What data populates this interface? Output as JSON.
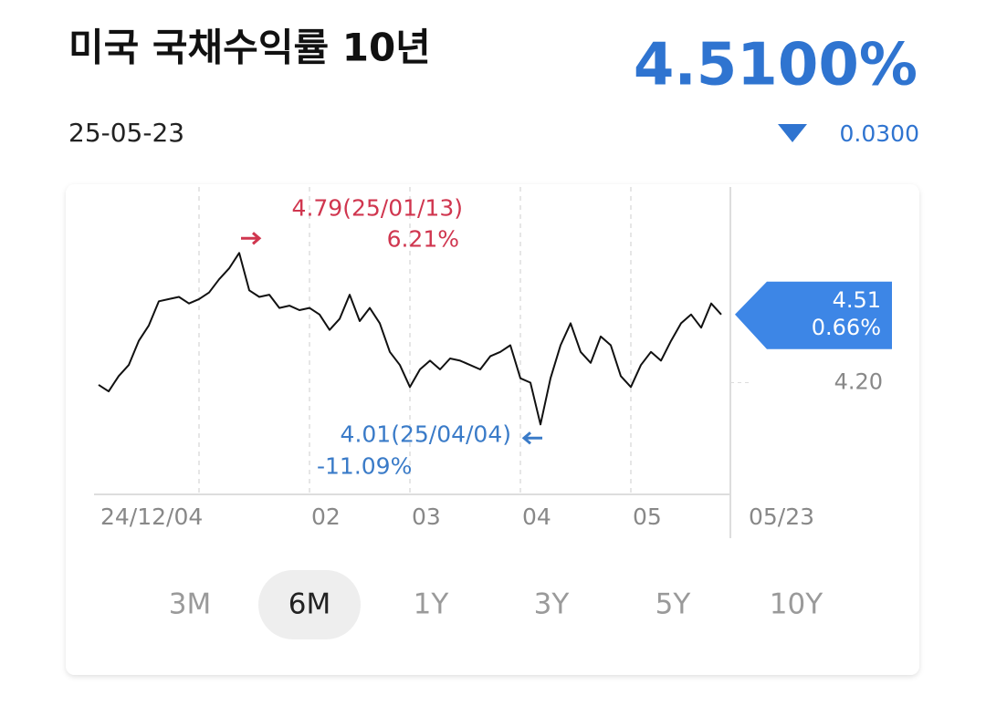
{
  "header": {
    "title": "미국 국채수익률 10년",
    "price": "4.5100%",
    "date": "25-05-23",
    "change": "0.0300",
    "color": "#2f74d0"
  },
  "chart_data": {
    "type": "line",
    "categories": [
      "24/12/04",
      null,
      null,
      null,
      null,
      null,
      null,
      null,
      null,
      null,
      null,
      null,
      null,
      null,
      null,
      null,
      null,
      null,
      null,
      null,
      null,
      "02",
      null,
      null,
      null,
      null,
      null,
      null,
      null,
      null,
      null,
      "03",
      null,
      null,
      null,
      null,
      null,
      null,
      null,
      null,
      null,
      null,
      "04",
      null,
      null,
      null,
      null,
      null,
      null,
      null,
      null,
      null,
      null,
      "05",
      null,
      null,
      null,
      null,
      null,
      null,
      null,
      null,
      "05/23"
    ],
    "values": [
      4.19,
      4.16,
      4.23,
      4.28,
      4.39,
      4.46,
      4.57,
      4.58,
      4.59,
      4.56,
      4.58,
      4.61,
      4.67,
      4.72,
      4.79,
      4.62,
      4.59,
      4.6,
      4.54,
      4.55,
      4.53,
      4.54,
      4.51,
      4.44,
      4.49,
      4.6,
      4.48,
      4.54,
      4.47,
      4.34,
      4.28,
      4.18,
      4.26,
      4.3,
      4.26,
      4.31,
      4.3,
      4.28,
      4.26,
      4.32,
      4.34,
      4.37,
      4.22,
      4.2,
      4.01,
      4.22,
      4.37,
      4.47,
      4.34,
      4.29,
      4.41,
      4.37,
      4.23,
      4.18,
      4.28,
      4.34,
      4.3,
      4.39,
      4.47,
      4.51,
      4.45,
      4.56,
      4.51
    ],
    "color": "#111111",
    "ylim": [
      3.7,
      5.09
    ],
    "yticks": [
      {
        "value": 4.2,
        "label": "4.20"
      }
    ],
    "annotations": {
      "high": {
        "label": "4.79(25/01/13)",
        "change": "6.21%",
        "color": "#d0364f"
      },
      "low": {
        "label": "4.01(25/04/04)",
        "change": "-11.09%",
        "color": "#3a7bc8"
      },
      "last": {
        "label": "4.51",
        "change": "0.66%",
        "color": "#3d86e6"
      }
    }
  },
  "tabs": {
    "items": [
      "3M",
      "6M",
      "1Y",
      "3Y",
      "5Y",
      "10Y"
    ],
    "selected_index": 1
  }
}
